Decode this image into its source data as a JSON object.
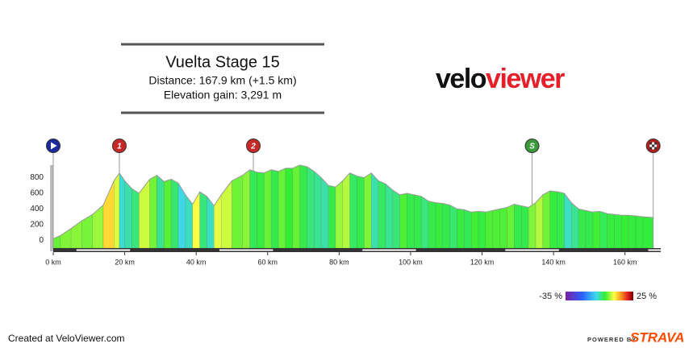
{
  "chart_data": {
    "type": "area",
    "title": "Vuelta Stage 15",
    "subtitle": [
      "Distance: 167.9 km (+1.5 km)",
      "Elevation gain: 3,291 m"
    ],
    "x": [
      0,
      2,
      5,
      8,
      11,
      14,
      17,
      18.5,
      20,
      22,
      24,
      27,
      29,
      31,
      33,
      35,
      37,
      39,
      41,
      43,
      45,
      47,
      50,
      53,
      55,
      57,
      59,
      61,
      63,
      65,
      67,
      69,
      71,
      73,
      75,
      77,
      79,
      81,
      83,
      85,
      87,
      89,
      91,
      93,
      95,
      97,
      99,
      101,
      103,
      105,
      107,
      109,
      111,
      113,
      115,
      117,
      119,
      121,
      123,
      125,
      127,
      129,
      131,
      133,
      135,
      137,
      139,
      141,
      143,
      145,
      147,
      149,
      151,
      153,
      155,
      157,
      159,
      161,
      163,
      165,
      167.9
    ],
    "values": [
      20,
      60,
      150,
      250,
      330,
      450,
      760,
      860,
      760,
      660,
      600,
      780,
      830,
      750,
      780,
      730,
      580,
      460,
      620,
      560,
      440,
      580,
      760,
      830,
      900,
      870,
      860,
      900,
      880,
      920,
      920,
      960,
      940,
      880,
      800,
      700,
      680,
      760,
      860,
      820,
      800,
      860,
      760,
      720,
      640,
      580,
      600,
      580,
      560,
      500,
      480,
      470,
      450,
      400,
      390,
      360,
      370,
      360,
      380,
      400,
      420,
      460,
      440,
      420,
      480,
      580,
      630,
      620,
      600,
      480,
      400,
      380,
      360,
      370,
      340,
      330,
      320,
      320,
      310,
      300,
      290
    ],
    "xlim": [
      0,
      170
    ],
    "ylim": [
      -100,
      960
    ],
    "xticks": [
      {
        "value": 0,
        "label": "0 km"
      },
      {
        "value": 20,
        "label": "20 km"
      },
      {
        "value": 40,
        "label": "40 km"
      },
      {
        "value": 60,
        "label": "60 km"
      },
      {
        "value": 80,
        "label": "80 km"
      },
      {
        "value": 100,
        "label": "100 km"
      },
      {
        "value": 120,
        "label": "120 km"
      },
      {
        "value": 140,
        "label": "140 km"
      },
      {
        "value": 160,
        "label": "160 km"
      }
    ],
    "yticks": [
      0,
      200,
      400,
      600,
      800
    ],
    "colorscale": [
      [
        -35,
        "#7b1fa2"
      ],
      [
        -20,
        "#2962ff"
      ],
      [
        -8,
        "#3fd8f0"
      ],
      [
        0,
        "#33ee33"
      ],
      [
        8,
        "#ffff44"
      ],
      [
        14,
        "#ff9a20"
      ],
      [
        20,
        "#e02020"
      ],
      [
        25,
        "#7a0000"
      ]
    ],
    "gradient_range": [
      {
        "value": -35,
        "label": "-35 %"
      },
      {
        "value": 25,
        "label": "25 %"
      }
    ],
    "markers": [
      {
        "x": 0,
        "icon": "start",
        "color": "#1a2a9e"
      },
      {
        "x": 18.5,
        "label": "1",
        "color": "#c62828"
      },
      {
        "x": 56,
        "label": "2",
        "color": "#c62828"
      },
      {
        "x": 134,
        "label": "S",
        "color": "#3a9a3a"
      },
      {
        "x": 167.9,
        "icon": "finish",
        "color": "#b71c1c"
      }
    ]
  },
  "brand": {
    "velo": "velo",
    "viewer": "viewer"
  },
  "footer": {
    "created": "Created at VeloViewer.com",
    "powered": "POWERED BY",
    "strava": "STRAVA"
  }
}
